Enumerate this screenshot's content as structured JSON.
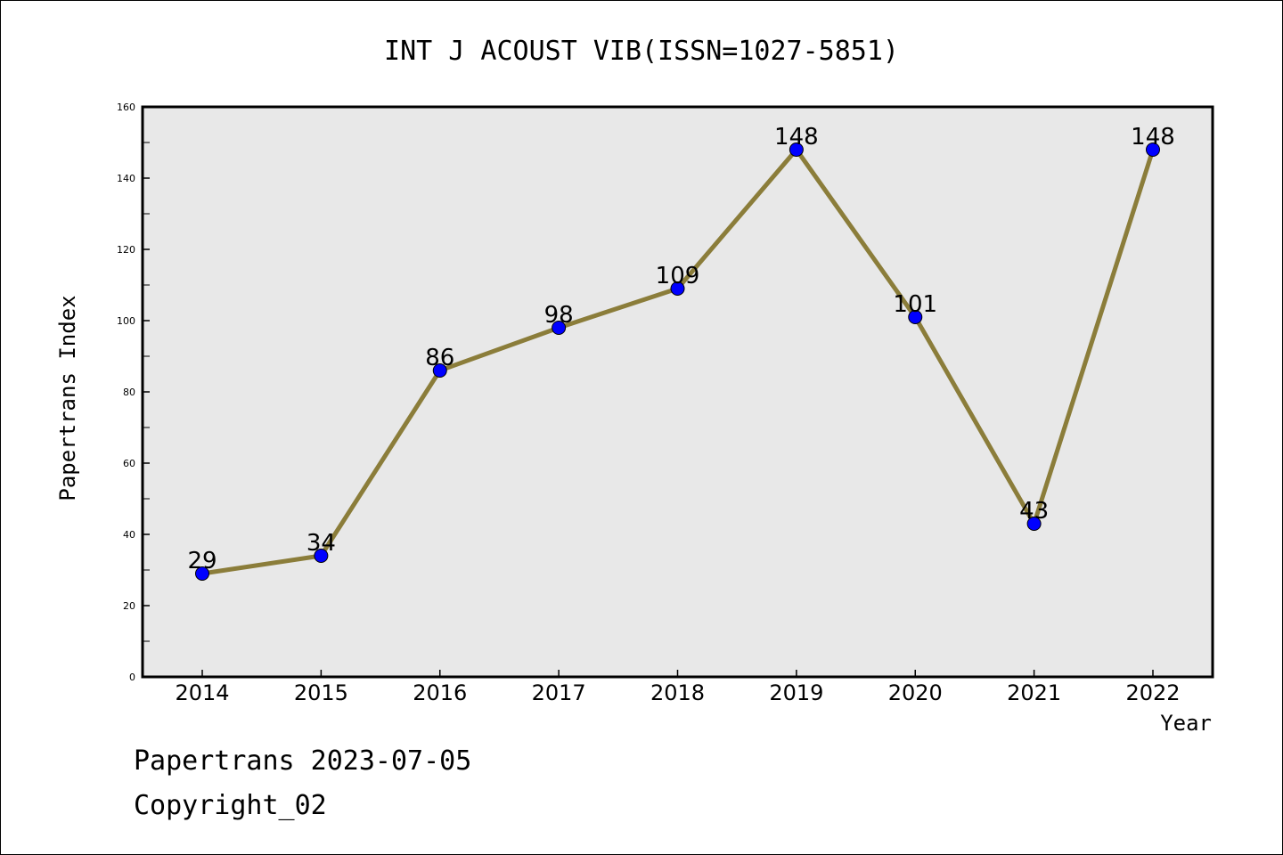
{
  "chart_data": {
    "type": "line",
    "title": "INT J ACOUST VIB(ISSN=1027-5851)",
    "xlabel": "Year",
    "ylabel": "Papertrans Index",
    "categories": [
      "2014",
      "2015",
      "2016",
      "2017",
      "2018",
      "2019",
      "2020",
      "2021",
      "2022"
    ],
    "values": [
      29,
      34,
      86,
      98,
      109,
      148,
      101,
      43,
      148
    ],
    "data_labels": [
      "29",
      "34",
      "86",
      "98",
      "109",
      "148",
      "101",
      "43",
      "148"
    ],
    "ylim": [
      0,
      160
    ],
    "yticks": [
      0,
      20,
      40,
      60,
      80,
      100,
      120,
      140,
      160
    ],
    "ytick_labels": [
      "0",
      "20",
      "40",
      "60",
      "80",
      "100",
      "120",
      "140",
      "160"
    ],
    "grid": false,
    "colors": {
      "line": "#8b7d3a",
      "marker": "#0000ff",
      "plot_background": "#e8e8e8"
    }
  },
  "footer": {
    "date_line": "Papertrans 2023-07-05",
    "copyright": "Copyright_02"
  }
}
